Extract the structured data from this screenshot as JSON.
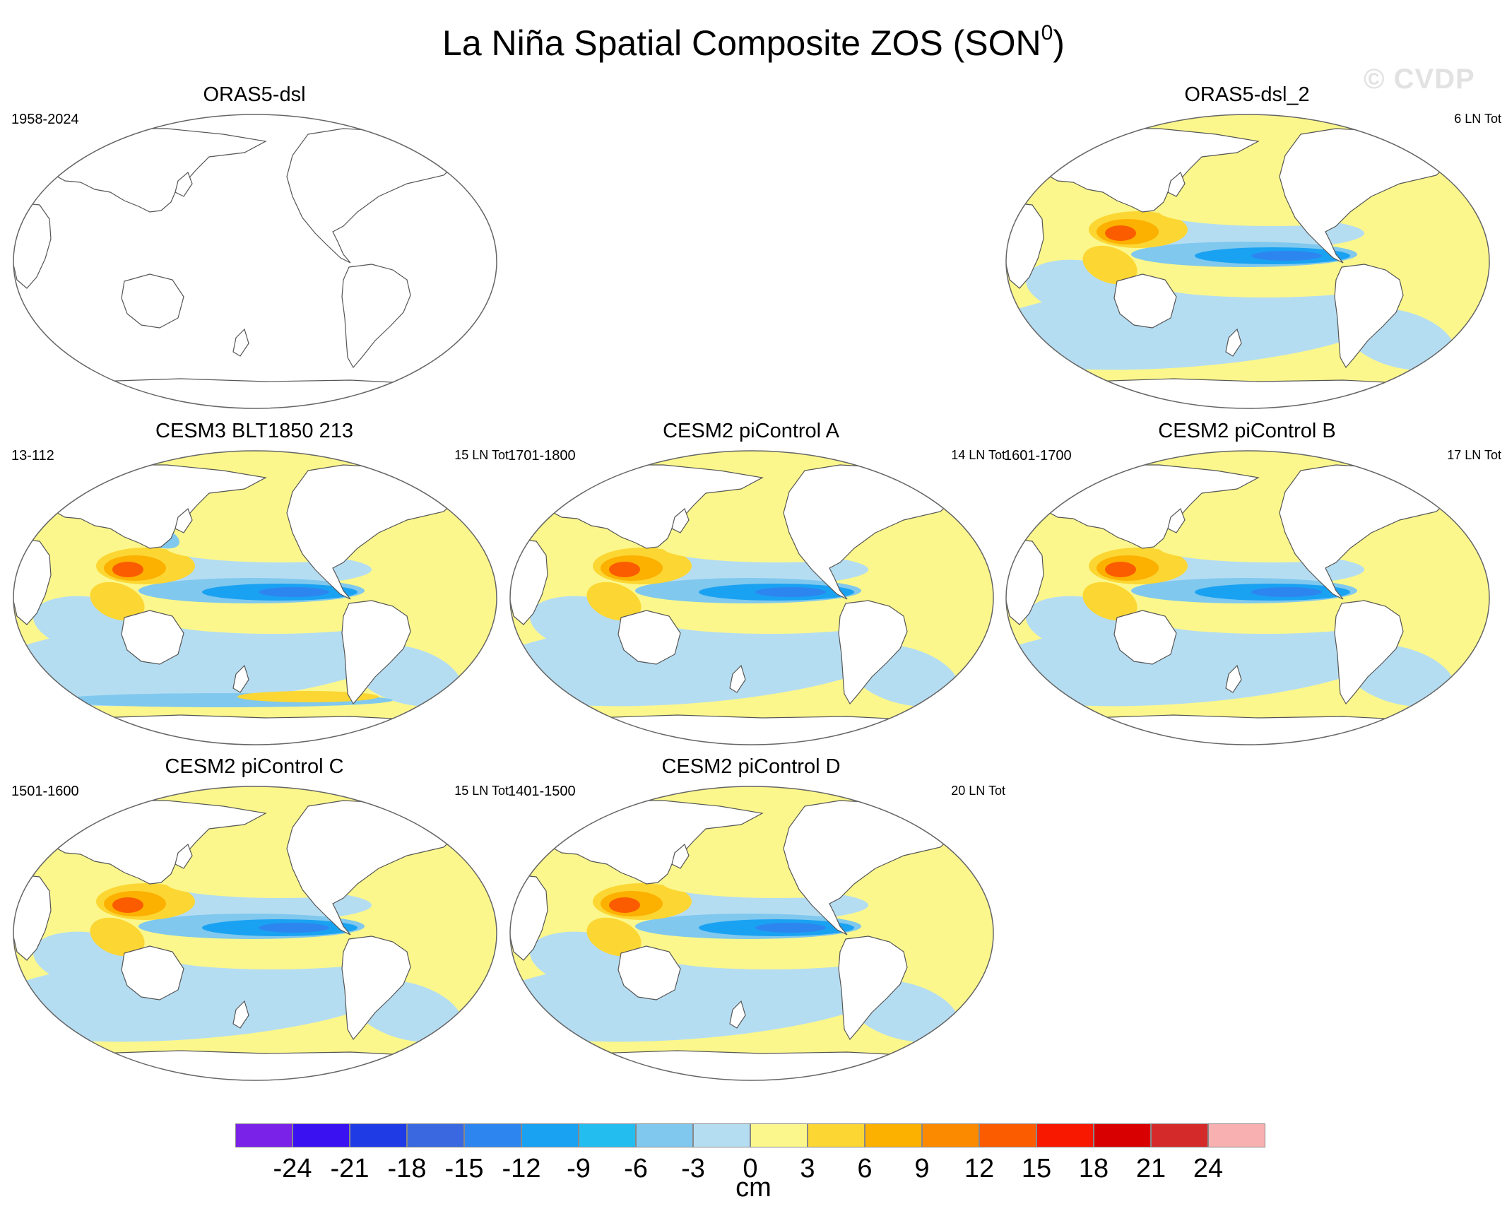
{
  "figure": {
    "title_main": "La Niña Spatial Composite ZOS (SON",
    "title_superscript": "0",
    "title_close": ")",
    "watermark": "© CVDP"
  },
  "panels": [
    {
      "title": "ORAS5-dsl",
      "years": "1958-2024",
      "count": "",
      "has_data": false
    },
    {
      "title": "ORAS5-dsl_2",
      "years": "",
      "count": "6 LN Tot",
      "has_data": true
    },
    {
      "title": "CESM3 BLT1850 213",
      "years": "13-112",
      "count": "15 LN Tot",
      "has_data": true
    },
    {
      "title": "CESM2 piControl A",
      "years": "1701-1800",
      "count": "14 LN Tot",
      "has_data": true
    },
    {
      "title": "CESM2 piControl B",
      "years": "1601-1700",
      "count": "17 LN Tot",
      "has_data": true
    },
    {
      "title": "CESM2 piControl C",
      "years": "1501-1600",
      "count": "15 LN Tot",
      "has_data": true
    },
    {
      "title": "CESM2 piControl D",
      "years": "1401-1500",
      "count": "20 LN Tot",
      "has_data": true
    }
  ],
  "colorbar": {
    "units": "cm",
    "ticks": [
      "-24",
      "-21",
      "-18",
      "-15",
      "-12",
      "-9",
      "-6",
      "-3",
      "0",
      "3",
      "6",
      "9",
      "12",
      "15",
      "18",
      "21",
      "24"
    ],
    "colors": [
      "#7a22e8",
      "#3a12f2",
      "#1f3be6",
      "#3a68e0",
      "#2d86f0",
      "#1aa2f2",
      "#24bdf0",
      "#80c8ee",
      "#b5ddf2",
      "#fbf78c",
      "#fcd633",
      "#fcb000",
      "#fc8a00",
      "#fb5c00",
      "#f81800",
      "#d80000",
      "#d42a2a",
      "#f8b0b0"
    ]
  },
  "colors": {
    "land": "#ffffff",
    "coast": "#555555",
    "pos_weak": "#fbf78c",
    "neg_weak": "#b5ddf2",
    "neg_mid": "#80c8ee",
    "neg_strong": "#1aa2f2",
    "neg_core": "#2d86f0",
    "pos_mid": "#fcd633",
    "pos_strong": "#fcb000",
    "pos_core": "#fb5c00"
  }
}
